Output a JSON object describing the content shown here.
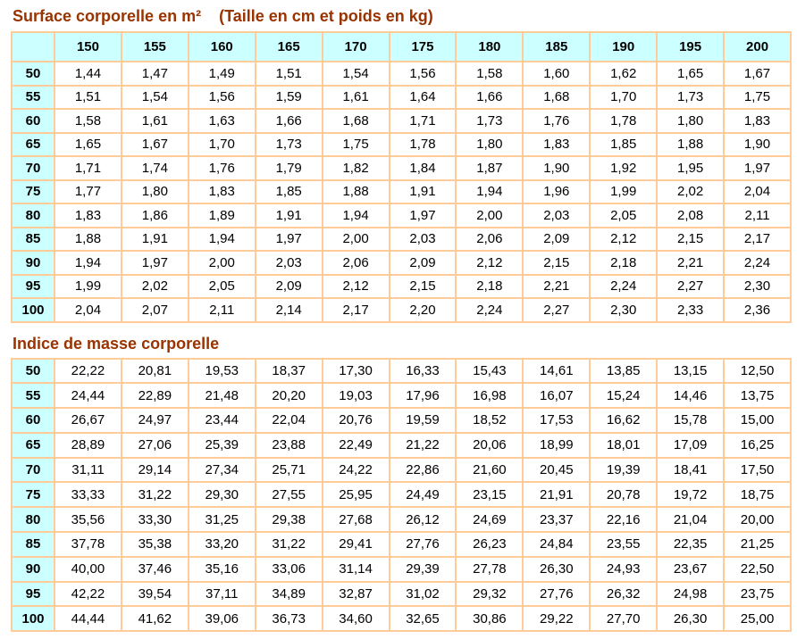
{
  "colors": {
    "title_text": "#993300",
    "table_border": "#FFCC99",
    "header_background": "#CCFFFF",
    "cell_background": "#FFFFFF",
    "value_normal": "#000000",
    "value_out_of_range": "#FF0000",
    "value_overweight": "#FF00FF"
  },
  "surface_table": {
    "title_main": "Surface corporelle en m²",
    "title_sub": "(Taille en cm et poids en kg)",
    "column_headers": [
      "150",
      "155",
      "160",
      "165",
      "170",
      "175",
      "180",
      "185",
      "190",
      "195",
      "200"
    ],
    "row_headers": [
      "50",
      "55",
      "60",
      "65",
      "70",
      "75",
      "80",
      "85",
      "90",
      "95",
      "100"
    ],
    "values": [
      [
        "1,44",
        "1,47",
        "1,49",
        "1,51",
        "1,54",
        "1,56",
        "1,58",
        "1,60",
        "1,62",
        "1,65",
        "1,67"
      ],
      [
        "1,51",
        "1,54",
        "1,56",
        "1,59",
        "1,61",
        "1,64",
        "1,66",
        "1,68",
        "1,70",
        "1,73",
        "1,75"
      ],
      [
        "1,58",
        "1,61",
        "1,63",
        "1,66",
        "1,68",
        "1,71",
        "1,73",
        "1,76",
        "1,78",
        "1,80",
        "1,83"
      ],
      [
        "1,65",
        "1,67",
        "1,70",
        "1,73",
        "1,75",
        "1,78",
        "1,80",
        "1,83",
        "1,85",
        "1,88",
        "1,90"
      ],
      [
        "1,71",
        "1,74",
        "1,76",
        "1,79",
        "1,82",
        "1,84",
        "1,87",
        "1,90",
        "1,92",
        "1,95",
        "1,97"
      ],
      [
        "1,77",
        "1,80",
        "1,83",
        "1,85",
        "1,88",
        "1,91",
        "1,94",
        "1,96",
        "1,99",
        "2,02",
        "2,04"
      ],
      [
        "1,83",
        "1,86",
        "1,89",
        "1,91",
        "1,94",
        "1,97",
        "2,00",
        "2,03",
        "2,05",
        "2,08",
        "2,11"
      ],
      [
        "1,88",
        "1,91",
        "1,94",
        "1,97",
        "2,00",
        "2,03",
        "2,06",
        "2,09",
        "2,12",
        "2,15",
        "2,17"
      ],
      [
        "1,94",
        "1,97",
        "2,00",
        "2,03",
        "2,06",
        "2,09",
        "2,12",
        "2,15",
        "2,18",
        "2,21",
        "2,24"
      ],
      [
        "1,99",
        "2,02",
        "2,05",
        "2,09",
        "2,12",
        "2,15",
        "2,18",
        "2,21",
        "2,24",
        "2,27",
        "2,30"
      ],
      [
        "2,04",
        "2,07",
        "2,11",
        "2,14",
        "2,17",
        "2,20",
        "2,24",
        "2,27",
        "2,30",
        "2,33",
        "2,36"
      ]
    ]
  },
  "bmi_table": {
    "title": "Indice de masse corporelle",
    "row_headers": [
      "50",
      "55",
      "60",
      "65",
      "70",
      "75",
      "80",
      "85",
      "90",
      "95",
      "100"
    ],
    "values": [
      [
        "22,22",
        "20,81",
        "19,53",
        "18,37",
        "17,30",
        "16,33",
        "15,43",
        "14,61",
        "13,85",
        "13,15",
        "12,50"
      ],
      [
        "24,44",
        "22,89",
        "21,48",
        "20,20",
        "19,03",
        "17,96",
        "16,98",
        "16,07",
        "15,24",
        "14,46",
        "13,75"
      ],
      [
        "26,67",
        "24,97",
        "23,44",
        "22,04",
        "20,76",
        "19,59",
        "18,52",
        "17,53",
        "16,62",
        "15,78",
        "15,00"
      ],
      [
        "28,89",
        "27,06",
        "25,39",
        "23,88",
        "22,49",
        "21,22",
        "20,06",
        "18,99",
        "18,01",
        "17,09",
        "16,25"
      ],
      [
        "31,11",
        "29,14",
        "27,34",
        "25,71",
        "24,22",
        "22,86",
        "21,60",
        "20,45",
        "19,39",
        "18,41",
        "17,50"
      ],
      [
        "33,33",
        "31,22",
        "29,30",
        "27,55",
        "25,95",
        "24,49",
        "23,15",
        "21,91",
        "20,78",
        "19,72",
        "18,75"
      ],
      [
        "35,56",
        "33,30",
        "31,25",
        "29,38",
        "27,68",
        "26,12",
        "24,69",
        "23,37",
        "22,16",
        "21,04",
        "20,00"
      ],
      [
        "37,78",
        "35,38",
        "33,20",
        "31,22",
        "29,41",
        "27,76",
        "26,23",
        "24,84",
        "23,55",
        "22,35",
        "21,25"
      ],
      [
        "40,00",
        "37,46",
        "35,16",
        "33,06",
        "31,14",
        "29,39",
        "27,78",
        "26,30",
        "24,93",
        "23,67",
        "22,50"
      ],
      [
        "42,22",
        "39,54",
        "37,11",
        "34,89",
        "32,87",
        "31,02",
        "29,32",
        "27,76",
        "26,32",
        "24,98",
        "23,75"
      ],
      [
        "44,44",
        "41,62",
        "39,06",
        "36,73",
        "34,60",
        "32,65",
        "30,86",
        "29,22",
        "27,70",
        "26,30",
        "25,00"
      ]
    ],
    "colors": [
      [
        "k",
        "k",
        "r",
        "r",
        "r",
        "r",
        "r",
        "r",
        "r",
        "r",
        "r"
      ],
      [
        "k",
        "k",
        "k",
        "k",
        "r",
        "r",
        "r",
        "r",
        "r",
        "r",
        "r"
      ],
      [
        "m",
        "k",
        "k",
        "k",
        "k",
        "r",
        "r",
        "r",
        "r",
        "r",
        "r"
      ],
      [
        "m",
        "m",
        "m",
        "k",
        "k",
        "k",
        "k",
        "r",
        "r",
        "r",
        "r"
      ],
      [
        "r",
        "m",
        "m",
        "m",
        "k",
        "k",
        "k",
        "k",
        "r",
        "r",
        "r"
      ],
      [
        "r",
        "r",
        "m",
        "m",
        "m",
        "k",
        "k",
        "k",
        "k",
        "r",
        "r"
      ],
      [
        "r",
        "r",
        "r",
        "m",
        "m",
        "m",
        "k",
        "k",
        "k",
        "k",
        "k"
      ],
      [
        "r",
        "r",
        "r",
        "r",
        "m",
        "m",
        "m",
        "k",
        "k",
        "k",
        "k"
      ],
      [
        "r",
        "r",
        "r",
        "r",
        "r",
        "m",
        "m",
        "m",
        "k",
        "k",
        "k"
      ],
      [
        "r",
        "r",
        "r",
        "r",
        "r",
        "r",
        "m",
        "m",
        "m",
        "k",
        "k"
      ],
      [
        "r",
        "r",
        "r",
        "r",
        "r",
        "r",
        "r",
        "m",
        "m",
        "m",
        "k"
      ]
    ]
  }
}
